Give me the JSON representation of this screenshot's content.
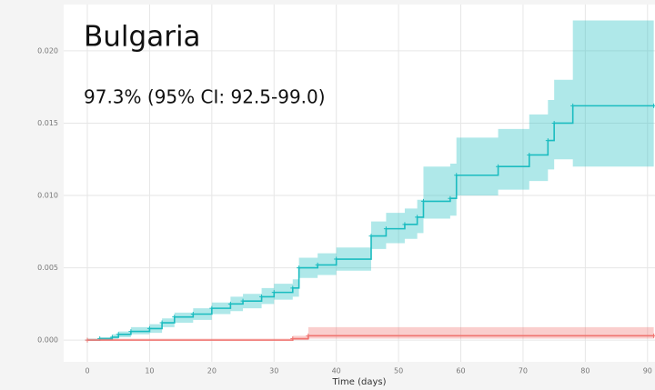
{
  "chart_data": {
    "type": "step",
    "title": "Bulgaria",
    "annotation": "97.3% (95% CI: 92.5-99.0)",
    "x_label": "Time (days)",
    "xlim": [
      -3.8,
      91.2
    ],
    "ylim": [
      -0.0015,
      0.0232
    ],
    "xticks": [
      0,
      10,
      20,
      30,
      40,
      50,
      60,
      70,
      80,
      90
    ],
    "yticks": [
      {
        "value": 0,
        "label": "0.000"
      },
      {
        "value": 0.005,
        "label": "0.005"
      },
      {
        "value": 0.01,
        "label": "0.010"
      },
      {
        "value": 0.015,
        "label": "0.015"
      },
      {
        "value": 0.02,
        "label": "0.020"
      }
    ],
    "grid": true,
    "series": [
      {
        "color": "#1bbcc0",
        "x": [
          0,
          2,
          4,
          5,
          7,
          10,
          12,
          14,
          17,
          20,
          23,
          25,
          28,
          30,
          33,
          34,
          37,
          40,
          45.6,
          48,
          51,
          53,
          54,
          58.3,
          59.3,
          66,
          71,
          74,
          75,
          78,
          91
        ],
        "values": [
          0,
          0.0001,
          0.0002,
          0.0004,
          0.0006,
          0.0008,
          0.0012,
          0.0016,
          0.0018,
          0.0022,
          0.0025,
          0.0027,
          0.003,
          0.0033,
          0.0036,
          0.005,
          0.0052,
          0.0056,
          0.0072,
          0.0077,
          0.008,
          0.0085,
          0.0096,
          0.0098,
          0.0114,
          0.012,
          0.0128,
          0.0138,
          0.015,
          0.0162,
          0.0162
        ],
        "lower": [
          0,
          0,
          0.0001,
          0.0002,
          0.0004,
          0.0005,
          0.0009,
          0.0012,
          0.0014,
          0.0018,
          0.002,
          0.0022,
          0.0025,
          0.0028,
          0.003,
          0.0043,
          0.0045,
          0.0048,
          0.0063,
          0.0067,
          0.007,
          0.0074,
          0.0084,
          0.0086,
          0.01,
          0.0104,
          0.011,
          0.0118,
          0.0125,
          0.012,
          0.012
        ],
        "upper": [
          0.0001,
          0.0002,
          0.0004,
          0.0006,
          0.0009,
          0.0011,
          0.0015,
          0.0019,
          0.0022,
          0.0026,
          0.003,
          0.0032,
          0.0036,
          0.0039,
          0.0042,
          0.0057,
          0.006,
          0.0064,
          0.0082,
          0.0088,
          0.0091,
          0.0097,
          0.012,
          0.0122,
          0.014,
          0.0146,
          0.0156,
          0.0166,
          0.018,
          0.0221,
          0.0221
        ]
      },
      {
        "color": "#f07470",
        "x": [
          0,
          33,
          35.5,
          91
        ],
        "values": [
          0,
          0.0001,
          0.0003,
          0.0003
        ],
        "lower": [
          0,
          0,
          0.0001,
          0.0001
        ],
        "upper": [
          0.0001,
          0.0003,
          0.0009,
          0.0009
        ]
      }
    ]
  }
}
